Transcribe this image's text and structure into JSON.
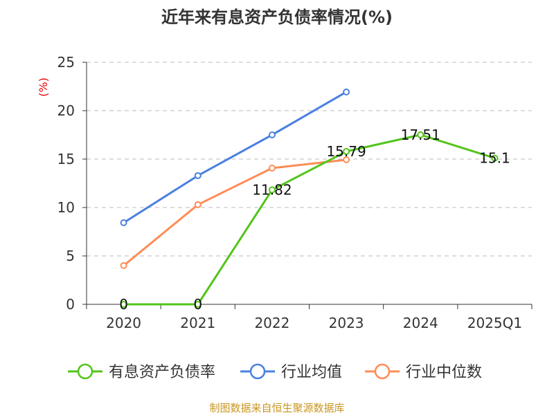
{
  "chart_data": {
    "type": "line",
    "title": "近年来有息资产负债率情况(%)",
    "ylabel": "(%)",
    "xlabel": "",
    "categories": [
      "2020",
      "2021",
      "2022",
      "2023",
      "2024",
      "2025Q1"
    ],
    "ylim": [
      0,
      25
    ],
    "yticks": [
      0,
      5,
      10,
      15,
      20,
      25
    ],
    "grid": true,
    "legend_position": "bottom",
    "series": [
      {
        "name": "有息资产负债率",
        "color": "#52c41a",
        "values": [
          0,
          0,
          11.82,
          15.79,
          17.51,
          15.1
        ],
        "labels": [
          "0",
          "0",
          "11.82",
          "15.79",
          "17.51",
          "15.1"
        ]
      },
      {
        "name": "行业均值",
        "color": "#4a80e0",
        "values": [
          8.43,
          13.29,
          17.5,
          21.93,
          null,
          null
        ]
      },
      {
        "name": "行业中位数",
        "color": "#ff8c55",
        "values": [
          4.0,
          10.29,
          14.07,
          14.93,
          null,
          null
        ]
      }
    ]
  },
  "footer": "制图数据来自恒生聚源数据库"
}
